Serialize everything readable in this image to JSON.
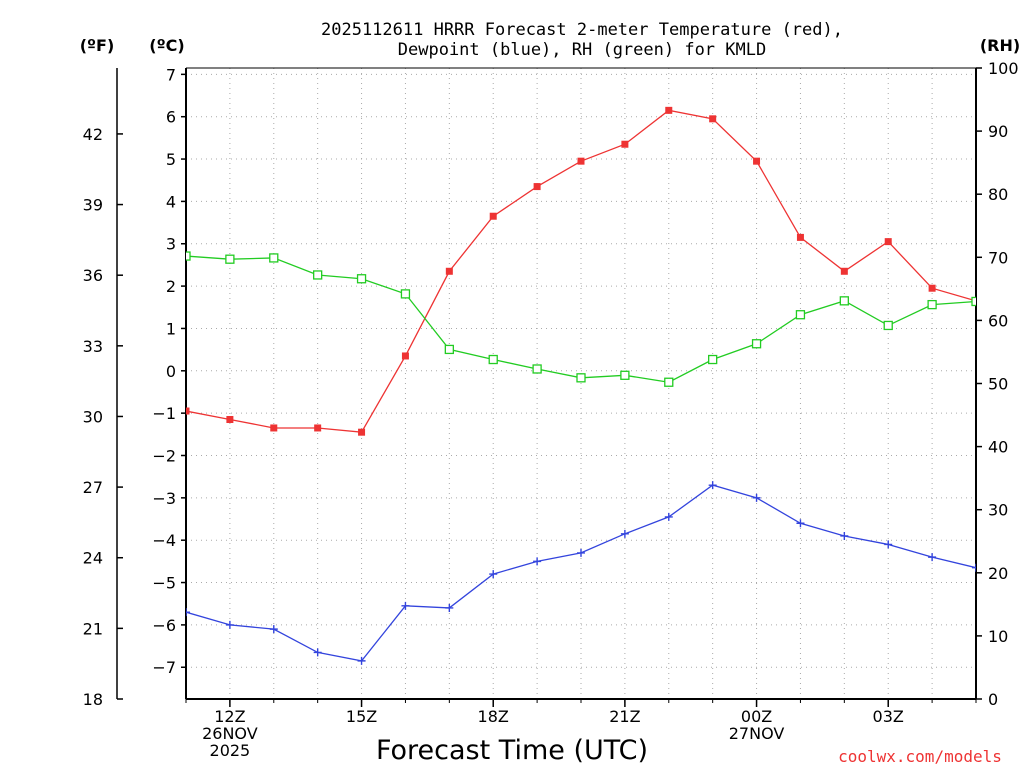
{
  "chart_data": {
    "type": "line",
    "title_line1": "2025112611 HRRR Forecast 2-meter Temperature (red),",
    "title_line2": "Dewpoint (blue), RH (green) for KMLD",
    "unit_f": "(ºF)",
    "unit_c": "(ºC)",
    "unit_rh": "(RH)",
    "xlabel": "Forecast Time (UTC)",
    "credit": "coolwx.com/models",
    "colors": {
      "temperature": "#ee3333",
      "dewpoint": "#3344dd",
      "rh": "#22cc22",
      "grid": "#aaaaaa",
      "axis": "#000000"
    },
    "hours": [
      11,
      12,
      13,
      14,
      15,
      16,
      17,
      18,
      19,
      20,
      21,
      22,
      23,
      24,
      25,
      26,
      27,
      28,
      29
    ],
    "xlim": [
      11,
      29
    ],
    "x_ticks": [
      {
        "hour": 12,
        "lines": [
          "12Z",
          "26NOV",
          "2025"
        ]
      },
      {
        "hour": 15,
        "lines": [
          "15Z"
        ]
      },
      {
        "hour": 18,
        "lines": [
          "18Z"
        ]
      },
      {
        "hour": 21,
        "lines": [
          "21Z"
        ]
      },
      {
        "hour": 24,
        "lines": [
          "00Z",
          "27NOV"
        ]
      },
      {
        "hour": 27,
        "lines": [
          "03Z"
        ]
      }
    ],
    "celsius_axis": {
      "range": [
        -7.75,
        7.15
      ],
      "ticks": [
        7,
        6,
        5,
        4,
        3,
        2,
        1,
        0,
        -1,
        -2,
        -3,
        -4,
        -5,
        -6,
        -7
      ]
    },
    "fahrenheit_axis": {
      "range": [
        18,
        44.8
      ],
      "ticks": [
        42,
        39,
        36,
        33,
        30,
        27,
        24,
        21,
        18
      ]
    },
    "rh_axis": {
      "range": [
        0,
        100
      ],
      "ticks": [
        100,
        90,
        80,
        70,
        60,
        50,
        40,
        30,
        20,
        10,
        0
      ]
    },
    "series": [
      {
        "name": "Temperature (°C)",
        "axis": "celsius",
        "color": "#ee3333",
        "marker": "filled-square",
        "values": [
          -0.95,
          -1.15,
          -1.35,
          -1.35,
          -1.45,
          0.35,
          2.35,
          3.65,
          4.35,
          4.95,
          5.35,
          6.15,
          5.95,
          4.95,
          3.15,
          2.35,
          3.05,
          1.95,
          1.65
        ]
      },
      {
        "name": "Dewpoint (°C)",
        "axis": "celsius",
        "color": "#3344dd",
        "marker": "plus",
        "values": [
          -5.7,
          -6.0,
          -6.1,
          -6.65,
          -6.85,
          -5.55,
          -5.6,
          -4.8,
          -4.5,
          -4.3,
          -3.85,
          -3.45,
          -2.7,
          -3.0,
          -3.6,
          -3.9,
          -4.1,
          -4.4,
          -4.65
        ]
      },
      {
        "name": "RH (%)",
        "axis": "rh",
        "color": "#22cc22",
        "marker": "open-square",
        "values": [
          70.2,
          69.7,
          69.9,
          67.2,
          66.6,
          64.2,
          55.4,
          53.8,
          52.3,
          50.9,
          51.3,
          50.2,
          53.8,
          56.3,
          60.9,
          63.1,
          59.2,
          62.5,
          63.0
        ]
      }
    ]
  }
}
